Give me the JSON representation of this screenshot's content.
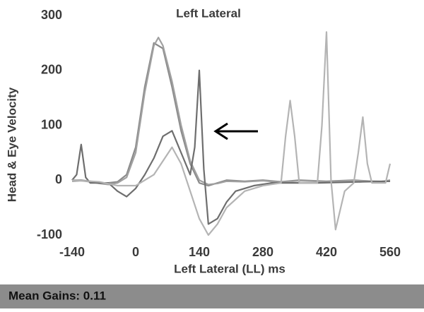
{
  "chart_data": {
    "type": "line",
    "title": "Left Lateral",
    "xlabel": "Left Lateral (LL) ms",
    "ylabel": "Head & Eye Velocity",
    "footer": "Mean Gains: 0.11",
    "xlim": [
      -140,
      560
    ],
    "xticks": [
      -140,
      0,
      140,
      280,
      420,
      560
    ],
    "ylim": [
      -100,
      300
    ],
    "yticks": [
      -100,
      0,
      100,
      200,
      300
    ],
    "series": [
      {
        "color": "#8a8a8a",
        "x": [
          -140,
          -120,
          -100,
          -80,
          -60,
          -40,
          -20,
          0,
          20,
          40,
          60,
          80,
          100,
          120,
          140,
          160,
          180,
          200,
          240,
          280,
          320,
          360,
          420,
          480,
          540,
          560
        ],
        "values": [
          0,
          0,
          -2,
          -5,
          -5,
          -3,
          10,
          60,
          170,
          250,
          240,
          170,
          90,
          30,
          -5,
          -10,
          -5,
          0,
          -2,
          0,
          -3,
          0,
          -2,
          0,
          -3,
          0
        ]
      },
      {
        "color": "#a0a0a0",
        "x": [
          -140,
          -120,
          -100,
          -80,
          -60,
          -40,
          -20,
          0,
          20,
          40,
          50,
          60,
          80,
          100,
          120,
          140,
          160,
          180,
          200,
          240,
          280,
          320,
          360,
          420,
          480,
          540,
          560
        ],
        "values": [
          -2,
          -1,
          -3,
          -6,
          -8,
          -5,
          5,
          50,
          160,
          245,
          260,
          245,
          180,
          100,
          35,
          0,
          -8,
          -6,
          -2,
          -3,
          -1,
          -4,
          -1,
          -3,
          -1,
          -2,
          -1
        ]
      },
      {
        "color": "#6e6e6e",
        "x": [
          -140,
          -130,
          -120,
          -110,
          -100,
          -60,
          -40,
          -20,
          0,
          20,
          40,
          60,
          80,
          100,
          120,
          130,
          140,
          150,
          160,
          180,
          200,
          220,
          260,
          300,
          400,
          500,
          560
        ],
        "values": [
          0,
          10,
          65,
          5,
          -5,
          -5,
          -20,
          -30,
          -15,
          10,
          40,
          80,
          90,
          50,
          10,
          60,
          200,
          20,
          -80,
          -70,
          -40,
          -20,
          -10,
          -5,
          -5,
          -3,
          -2
        ]
      },
      {
        "color": "#b4b4b4",
        "x": [
          -140,
          -80,
          -40,
          0,
          40,
          80,
          100,
          120,
          140,
          160,
          180,
          200,
          240,
          280,
          320,
          330,
          340,
          350,
          360,
          400,
          410,
          420,
          430,
          440,
          460,
          480,
          490,
          500,
          510,
          520,
          550,
          560
        ],
        "values": [
          0,
          -3,
          -10,
          -10,
          10,
          60,
          30,
          -20,
          -70,
          -100,
          -80,
          -50,
          -20,
          -10,
          -5,
          80,
          145,
          80,
          -5,
          -5,
          100,
          270,
          0,
          -90,
          -20,
          -5,
          50,
          115,
          30,
          -5,
          -5,
          30
        ]
      }
    ]
  }
}
